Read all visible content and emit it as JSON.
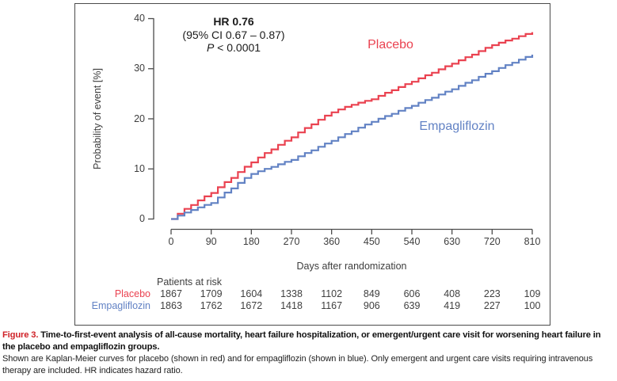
{
  "chart_data": {
    "type": "line",
    "subtype": "kaplan-meier-step",
    "xlabel": "Days after randomization",
    "ylabel": "Probability of event [%]",
    "xlim": [
      0,
      810
    ],
    "ylim": [
      0,
      40
    ],
    "x_ticks": [
      0,
      90,
      180,
      270,
      360,
      450,
      540,
      630,
      720,
      810
    ],
    "y_ticks": [
      0,
      10,
      20,
      30,
      40
    ],
    "grid": false,
    "annotation": {
      "hr": "HR 0.76",
      "ci": "(95% CI 0.67 – 0.87)",
      "p_italic": "P",
      "p_rest": " < 0.0001"
    },
    "series": [
      {
        "name": "Placebo",
        "color": "#ea4250",
        "label_pos": {
          "x": 493,
          "y": 57
        },
        "points": [
          [
            0,
            0
          ],
          [
            45,
            2.8
          ],
          [
            90,
            5.2
          ],
          [
            135,
            8.2
          ],
          [
            180,
            11.3
          ],
          [
            225,
            13.9
          ],
          [
            270,
            16.3
          ],
          [
            315,
            18.9
          ],
          [
            360,
            21.3
          ],
          [
            405,
            22.8
          ],
          [
            450,
            23.9
          ],
          [
            495,
            25.7
          ],
          [
            540,
            27.4
          ],
          [
            585,
            29.2
          ],
          [
            630,
            31.0
          ],
          [
            675,
            32.8
          ],
          [
            720,
            34.7
          ],
          [
            765,
            36.0
          ],
          [
            810,
            37.3
          ]
        ]
      },
      {
        "name": "Empagliflozin",
        "color": "#6282c4",
        "label_pos": {
          "x": 577,
          "y": 160
        },
        "points": [
          [
            0,
            0
          ],
          [
            45,
            1.8
          ],
          [
            90,
            3.2
          ],
          [
            135,
            6.1
          ],
          [
            180,
            9.0
          ],
          [
            225,
            10.4
          ],
          [
            270,
            11.8
          ],
          [
            315,
            13.7
          ],
          [
            360,
            15.6
          ],
          [
            405,
            17.5
          ],
          [
            450,
            19.4
          ],
          [
            495,
            21.0
          ],
          [
            540,
            22.6
          ],
          [
            585,
            24.2
          ],
          [
            630,
            25.9
          ],
          [
            675,
            27.7
          ],
          [
            720,
            29.5
          ],
          [
            765,
            31.2
          ],
          [
            810,
            32.8
          ]
        ]
      }
    ],
    "risk_table": {
      "title": "Patients at risk",
      "rows": [
        {
          "label": "Placebo",
          "color": "#ea4250",
          "values": [
            1867,
            1709,
            1604,
            1338,
            1102,
            849,
            606,
            408,
            223,
            109
          ]
        },
        {
          "label": "Empagliflozin",
          "color": "#6282c4",
          "values": [
            1863,
            1762,
            1672,
            1418,
            1167,
            906,
            639,
            419,
            227,
            100
          ]
        }
      ]
    }
  },
  "caption": {
    "figure_label": "Figure 3.",
    "title_bold": " Time-to-first-event analysis of all-cause mortality, heart failure hospitalization, or emergent/urgent care visit for worsening heart failure in the placebo and empagliflozin groups.",
    "body": "Shown are Kaplan-Meier curves for placebo (shown in red) and for empagliflozin (shown in blue). Only emergent and urgent care visits requiring intravenous therapy are included. HR indicates hazard ratio."
  }
}
